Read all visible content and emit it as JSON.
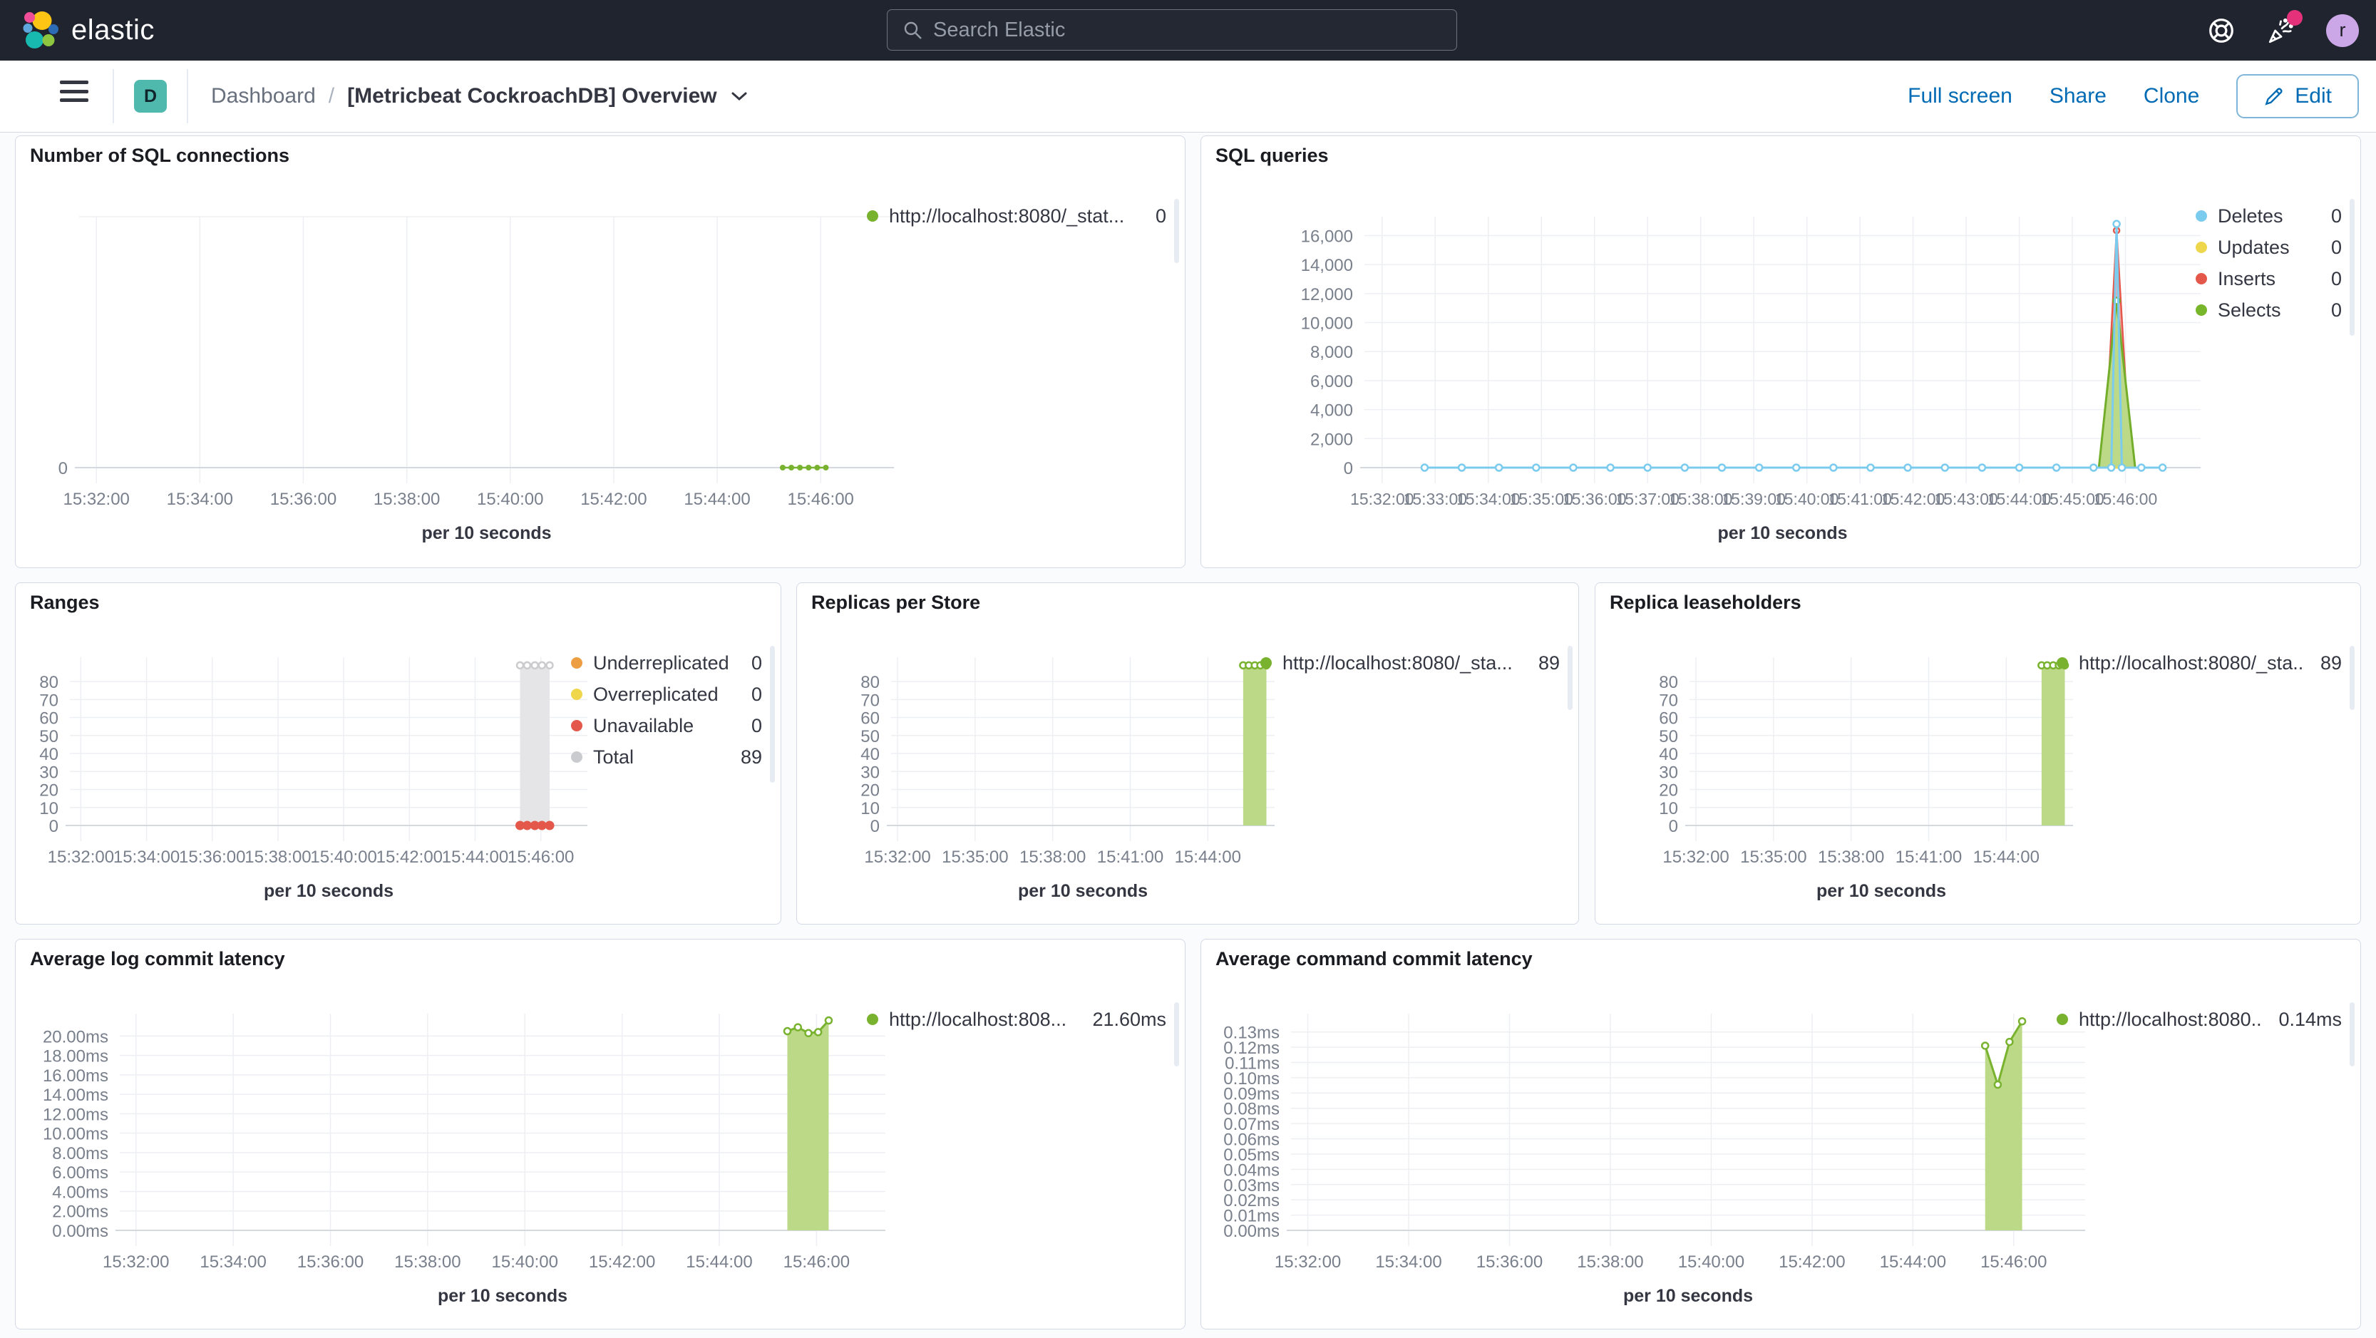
{
  "header": {
    "brand": "elastic",
    "search_placeholder": "Search Elastic",
    "avatar_initial": "r"
  },
  "toolbar": {
    "breadcrumb_section": "Dashboard",
    "breadcrumb_sep": "/",
    "breadcrumb_title": "[Metricbeat CockroachDB] Overview",
    "full_screen": "Full screen",
    "share": "Share",
    "clone": "Clone",
    "edit": "Edit"
  },
  "colors": {
    "accent_blue": "#006bb4",
    "green": "#78b22e",
    "green_fill": "#bcd987",
    "blue": "#7bcbef",
    "yellow": "#efd74d",
    "red": "#e4584c",
    "orange": "#ed9e42",
    "gray": "#c9cbce",
    "panel_border": "#d3dae6",
    "topbar_bg": "#20242e",
    "badge_teal": "#50b9ad",
    "notification_pink": "#e5317a"
  },
  "chart_data": [
    {
      "id": "sql-connections",
      "type": "area",
      "title": "Number of SQL connections",
      "xlabel": "per 10 seconds",
      "x_domain": [
        100,
        1045
      ],
      "x_ticks": [
        120,
        240,
        360,
        480,
        600,
        720,
        840,
        960
      ],
      "x_tick_labels": [
        "15:32:00",
        "15:34:00",
        "15:36:00",
        "15:38:00",
        "15:40:00",
        "15:42:00",
        "15:44:00",
        "15:46:00"
      ],
      "y_ticks": [
        0
      ],
      "y_tick_labels": [
        "0"
      ],
      "y_max": 10,
      "legend": [
        {
          "label": "http://localhost:8080/_stat...",
          "value": "0",
          "color": "#78b22e"
        }
      ],
      "series": [
        {
          "name": "connections",
          "color": "#78b22e",
          "width": 2.5,
          "fill": null,
          "marker": "dot",
          "marker_r": 4,
          "points": [
            [
              916,
              0
            ],
            [
              926,
              0
            ],
            [
              936,
              0
            ],
            [
              946,
              0
            ],
            [
              956,
              0
            ],
            [
              966,
              0
            ]
          ]
        }
      ]
    },
    {
      "id": "sql-queries",
      "type": "area",
      "title": "SQL queries",
      "xlabel": "per 10 seconds",
      "x_domain": [
        100,
        1045
      ],
      "x_ticks": [
        120,
        180,
        240,
        300,
        360,
        420,
        480,
        540,
        600,
        660,
        720,
        780,
        840,
        900,
        960
      ],
      "x_tick_labels": [
        "15:32:00",
        "15:33:00",
        "15:34:00",
        "15:35:00",
        "15:36:00",
        "15:37:00",
        "15:38:00",
        "15:39:00",
        "15:40:00",
        "15:41:00",
        "15:42:00",
        "15:43:00",
        "15:44:00",
        "15:45:00",
        "15:46:00"
      ],
      "y_ticks": [
        0,
        2000,
        4000,
        6000,
        8000,
        10000,
        12000,
        14000,
        16000
      ],
      "y_tick_labels": [
        "0",
        "2,000",
        "4,000",
        "6,000",
        "8,000",
        "10,000",
        "12,000",
        "14,000",
        "16,000"
      ],
      "y_max": 17300,
      "legend": [
        {
          "label": "Deletes",
          "value": "0",
          "color": "#7bcbef"
        },
        {
          "label": "Updates",
          "value": "0",
          "color": "#efd74d"
        },
        {
          "label": "Inserts",
          "value": "0",
          "color": "#e4584c"
        },
        {
          "label": "Selects",
          "value": "0",
          "color": "#77b62a"
        }
      ],
      "series": [
        {
          "name": "inserts",
          "color": "#e4584c",
          "width": 2.5,
          "fill": "#e4584c",
          "fill_opacity": 0.5,
          "marker": "open",
          "marker_r": 4,
          "points": [
            [
              936,
              0,
              0
            ],
            [
              950,
              16350,
              1
            ],
            [
              966,
              0,
              0
            ]
          ]
        },
        {
          "name": "selects",
          "color": "#73ae2b",
          "width": 3,
          "fill": "#bcd987",
          "fill_opacity": 1,
          "marker": "open",
          "marker_r": 4.5,
          "points": [
            [
              930,
              0,
              0
            ],
            [
              950,
              11500,
              1
            ],
            [
              971,
              0,
              0
            ]
          ]
        },
        {
          "name": "updates",
          "color": "#efd74d",
          "width": 3,
          "fill": null,
          "marker": null,
          "points": [
            [
              168,
              0
            ],
            [
              1005,
              0
            ]
          ]
        },
        {
          "name": "deletes",
          "color": "#7bcbef",
          "width": 3,
          "fill": null,
          "marker": "open",
          "marker_r": 4.5,
          "points": [
            [
              168,
              0
            ],
            [
              210,
              0
            ],
            [
              252,
              0
            ],
            [
              294,
              0
            ],
            [
              336,
              0
            ],
            [
              378,
              0
            ],
            [
              420,
              0
            ],
            [
              462,
              0
            ],
            [
              504,
              0
            ],
            [
              546,
              0
            ],
            [
              588,
              0
            ],
            [
              630,
              0
            ],
            [
              672,
              0
            ],
            [
              714,
              0
            ],
            [
              756,
              0
            ],
            [
              798,
              0
            ],
            [
              840,
              0
            ],
            [
              882,
              0
            ],
            [
              924,
              0
            ],
            [
              944,
              0
            ],
            [
              950,
              16800
            ],
            [
              956,
              0
            ],
            [
              978,
              0
            ],
            [
              1002,
              0
            ]
          ]
        }
      ]
    },
    {
      "id": "ranges",
      "type": "area",
      "title": "Ranges",
      "xlabel": "per 10 seconds",
      "x_domain": [
        100,
        1045
      ],
      "x_ticks": [
        120,
        240,
        360,
        480,
        600,
        720,
        840,
        960
      ],
      "x_tick_labels": [
        "15:32:00",
        "15:34:00",
        "15:36:00",
        "15:38:00",
        "15:40:00",
        "15:42:00",
        "15:44:00",
        "15:46:00"
      ],
      "y_ticks": [
        0,
        10,
        20,
        30,
        40,
        50,
        60,
        70,
        80
      ],
      "y_tick_labels": [
        "0",
        "10",
        "20",
        "30",
        "40",
        "50",
        "60",
        "70",
        "80"
      ],
      "y_max": 93.5,
      "legend": [
        {
          "label": "Underreplicated",
          "value": "0",
          "color": "#ed9e42"
        },
        {
          "label": "Overreplicated",
          "value": "0",
          "color": "#efd64b"
        },
        {
          "label": "Unavailable",
          "value": "0",
          "color": "#e4584c"
        },
        {
          "label": "Total",
          "value": "89",
          "color": "#c9cbce"
        }
      ],
      "series": [
        {
          "name": "total",
          "color": "#cbcbcd",
          "width": 2.5,
          "fill": "#e4e4e6",
          "fill_opacity": 0.95,
          "marker": "open",
          "marker_r": 4.5,
          "points": [
            [
              922,
              89
            ],
            [
              935,
              89
            ],
            [
              949,
              89
            ],
            [
              962,
              89
            ],
            [
              976,
              89
            ]
          ]
        },
        {
          "name": "unavailable",
          "color": "#e4584c",
          "width": 0,
          "fill": null,
          "marker": "dot",
          "marker_r": 6.5,
          "points": [
            [
              922,
              0
            ],
            [
              935,
              0
            ],
            [
              949,
              0
            ],
            [
              962,
              0
            ],
            [
              976,
              0
            ]
          ]
        }
      ]
    },
    {
      "id": "replicas-per-store",
      "type": "area",
      "title": "Replicas per Store",
      "xlabel": "per 10 seconds",
      "x_domain": [
        105,
        995
      ],
      "x_ticks": [
        120,
        300,
        480,
        660,
        840
      ],
      "x_tick_labels": [
        "15:32:00",
        "15:35:00",
        "15:38:00",
        "15:41:00",
        "15:44:00"
      ],
      "y_ticks": [
        0,
        10,
        20,
        30,
        40,
        50,
        60,
        70,
        80
      ],
      "y_tick_labels": [
        "0",
        "10",
        "20",
        "30",
        "40",
        "50",
        "60",
        "70",
        "80"
      ],
      "y_max": 93.5,
      "legend": [
        {
          "label": "http://localhost:8080/_sta...",
          "value": "89",
          "color": "#78b22e"
        }
      ],
      "series": [
        {
          "name": "replicas",
          "color": "#78b22e",
          "width": 3,
          "fill": "#bcd987",
          "fill_opacity": 1,
          "marker": "open",
          "marker_r": 4.5,
          "points": [
            [
              922,
              89
            ],
            [
              935,
              89
            ],
            [
              949,
              89
            ],
            [
              962,
              89
            ],
            [
              976,
              89
            ]
          ]
        }
      ]
    },
    {
      "id": "replica-leaseholders",
      "type": "area",
      "title": "Replica leaseholders",
      "xlabel": "per 10 seconds",
      "x_domain": [
        105,
        995
      ],
      "x_ticks": [
        120,
        300,
        480,
        660,
        840
      ],
      "x_tick_labels": [
        "15:32:00",
        "15:35:00",
        "15:38:00",
        "15:41:00",
        "15:44:00"
      ],
      "y_ticks": [
        0,
        10,
        20,
        30,
        40,
        50,
        60,
        70,
        80
      ],
      "y_tick_labels": [
        "0",
        "10",
        "20",
        "30",
        "40",
        "50",
        "60",
        "70",
        "80"
      ],
      "y_max": 93.5,
      "legend": [
        {
          "label": "http://localhost:8080/_sta...",
          "value": "89",
          "color": "#78b22e"
        }
      ],
      "series": [
        {
          "name": "leaseholders",
          "color": "#78b22e",
          "width": 3,
          "fill": "#bcd987",
          "fill_opacity": 1,
          "marker": "open",
          "marker_r": 4.5,
          "points": [
            [
              922,
              89
            ],
            [
              935,
              89
            ],
            [
              949,
              89
            ],
            [
              962,
              89
            ],
            [
              976,
              89
            ]
          ]
        }
      ]
    },
    {
      "id": "avg-log-commit-latency",
      "type": "area",
      "title": "Average log commit latency",
      "xlabel": "per 10 seconds",
      "x_domain": [
        100,
        1045
      ],
      "x_ticks": [
        120,
        240,
        360,
        480,
        600,
        720,
        840,
        960
      ],
      "x_tick_labels": [
        "15:32:00",
        "15:34:00",
        "15:36:00",
        "15:38:00",
        "15:40:00",
        "15:42:00",
        "15:44:00",
        "15:46:00"
      ],
      "y_ticks": [
        0,
        2,
        4,
        6,
        8,
        10,
        12,
        14,
        16,
        18,
        20
      ],
      "y_tick_labels": [
        "0.00ms",
        "2.00ms",
        "4.00ms",
        "6.00ms",
        "8.00ms",
        "10.00ms",
        "12.00ms",
        "14.00ms",
        "16.00ms",
        "18.00ms",
        "20.00ms"
      ],
      "y_max": 22.3,
      "legend": [
        {
          "label": "http://localhost:808...",
          "value": "21.60ms",
          "color": "#78b22e"
        }
      ],
      "series": [
        {
          "name": "log-commit-latency",
          "color": "#78b22e",
          "width": 3,
          "fill": "#bcd987",
          "fill_opacity": 1,
          "marker": "open",
          "marker_r": 4.5,
          "points": [
            [
              924,
              20.5
            ],
            [
              937,
              20.9
            ],
            [
              950,
              20.3
            ],
            [
              962,
              20.4
            ],
            [
              975,
              21.6
            ]
          ]
        }
      ]
    },
    {
      "id": "avg-command-commit-latency",
      "type": "area",
      "title": "Average command commit latency",
      "xlabel": "per 10 seconds",
      "x_domain": [
        100,
        1045
      ],
      "x_ticks": [
        120,
        240,
        360,
        480,
        600,
        720,
        840,
        960
      ],
      "x_tick_labels": [
        "15:32:00",
        "15:34:00",
        "15:36:00",
        "15:38:00",
        "15:40:00",
        "15:42:00",
        "15:44:00",
        "15:46:00"
      ],
      "y_ticks": [
        0,
        0.01,
        0.02,
        0.03,
        0.04,
        0.05,
        0.06,
        0.07,
        0.08,
        0.09,
        0.1,
        0.11,
        0.12,
        0.13
      ],
      "y_tick_labels": [
        "0.00ms",
        "0.01ms",
        "0.02ms",
        "0.03ms",
        "0.04ms",
        "0.05ms",
        "0.06ms",
        "0.07ms",
        "0.08ms",
        "0.09ms",
        "0.10ms",
        "0.11ms",
        "0.12ms",
        "0.13ms"
      ],
      "y_max": 0.142,
      "legend": [
        {
          "label": "http://localhost:8080...",
          "value": "0.14ms",
          "color": "#78b22e"
        }
      ],
      "series": [
        {
          "name": "command-commit-latency",
          "color": "#78b22e",
          "width": 3,
          "fill": "#bcd987",
          "fill_opacity": 1,
          "marker": "open",
          "marker_r": 4.5,
          "points": [
            [
              926,
              0.121
            ],
            [
              941,
              0.0955
            ],
            [
              955,
              0.1235
            ],
            [
              970,
              0.137
            ]
          ]
        }
      ]
    }
  ]
}
